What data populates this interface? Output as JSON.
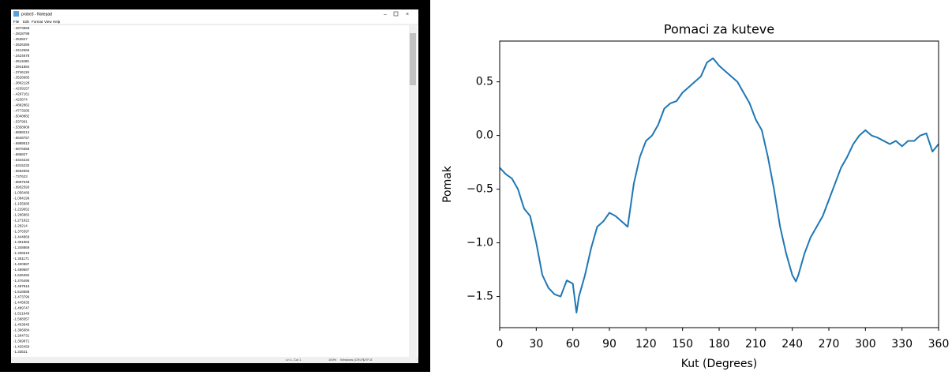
{
  "notepad": {
    "title": "probe3 - Notepad",
    "menu": [
      "File",
      "Edit",
      "Format",
      "View",
      "Help"
    ],
    "lines": [
      "-.2873658",
      "-.2818798",
      "-.353827",
      "-.3526386",
      "-.3412566",
      "-.3424678",
      "-.3511685",
      "-.3941884",
      "-.3746119",
      "-.3528685",
      "-.3862128",
      "-.4239157",
      "-.4297161",
      "-.423674",
      "-.4882862",
      "-.4773285",
      "-.5048882",
      "-.537991",
      "-.5358909",
      "-.5868214",
      "-.6648757",
      "-.6989513",
      "-.6878358",
      "-.686827",
      "-.6344234",
      "-.6315232",
      "-.6682593",
      "-.737623",
      "-.8897648",
      "-.9952593",
      "-1.056486",
      "-1.084199",
      "-1.155685",
      "-1.229652",
      "-1.296882",
      "-1.271822",
      "-1.28214",
      "-1.376397",
      "-1.444869",
      "-1.391865",
      "-1.348869",
      "-1.336519",
      "-1.361171",
      "-1.400887",
      "-1.469687",
      "-1.536392",
      "-1.476496",
      "-1.487816",
      "-1.518588",
      "-1.473796",
      "-1.445835",
      "-1.489747",
      "-1.521649",
      "-1.588357",
      "-1.463645",
      "-1.366084",
      "-1.284731",
      "-1.369871",
      "-1.425459",
      "-1.33531"
    ],
    "status": [
      "Ln 1, Col 1",
      "100%",
      "Windows (CRLF)",
      "UTF-8"
    ]
  },
  "chart_data": {
    "type": "line",
    "title": "Pomaci za kuteve",
    "x_label": "Kut (Degrees)",
    "y_label": "Pomak",
    "color": "#1f77b4",
    "x": [
      0,
      5,
      10,
      15,
      20,
      25,
      30,
      35,
      40,
      45,
      50,
      55,
      60,
      63,
      65,
      70,
      75,
      80,
      85,
      90,
      95,
      100,
      105,
      110,
      115,
      120,
      125,
      130,
      135,
      140,
      145,
      150,
      155,
      160,
      165,
      170,
      175,
      180,
      185,
      190,
      195,
      200,
      205,
      210,
      215,
      220,
      225,
      230,
      235,
      240,
      243,
      245,
      250,
      255,
      260,
      265,
      270,
      275,
      280,
      285,
      290,
      295,
      300,
      305,
      310,
      315,
      320,
      325,
      330,
      335,
      340,
      345,
      350,
      355,
      360
    ],
    "values": [
      -0.3,
      -0.36,
      -0.4,
      -0.5,
      -0.68,
      -0.75,
      -1.0,
      -1.3,
      -1.42,
      -1.48,
      -1.5,
      -1.35,
      -1.38,
      -1.65,
      -1.5,
      -1.3,
      -1.05,
      -0.85,
      -0.8,
      -0.72,
      -0.75,
      -0.8,
      -0.85,
      -0.45,
      -0.2,
      -0.05,
      0.0,
      0.1,
      0.25,
      0.3,
      0.32,
      0.4,
      0.45,
      0.5,
      0.55,
      0.68,
      0.72,
      0.65,
      0.6,
      0.55,
      0.5,
      0.4,
      0.3,
      0.15,
      0.05,
      -0.2,
      -0.5,
      -0.85,
      -1.1,
      -1.3,
      -1.36,
      -1.3,
      -1.1,
      -0.95,
      -0.85,
      -0.75,
      -0.6,
      -0.45,
      -0.3,
      -0.2,
      -0.08,
      0.0,
      0.05,
      0.0,
      -0.02,
      -0.05,
      -0.08,
      -0.05,
      -0.1,
      -0.05,
      -0.05,
      0.0,
      0.02,
      -0.15,
      -0.08
    ],
    "xlim": [
      0,
      360
    ],
    "xticks": [
      0,
      30,
      60,
      90,
      120,
      150,
      180,
      210,
      240,
      270,
      300,
      330,
      360
    ],
    "ylim": [
      -1.79,
      0.88
    ],
    "yticks": [
      {
        "value": -1.5,
        "label": "−1.5"
      },
      {
        "value": -1.0,
        "label": "−1.0"
      },
      {
        "value": -0.5,
        "label": "−0.5"
      },
      {
        "value": 0.0,
        "label": "0.0"
      },
      {
        "value": 0.5,
        "label": "0.5"
      }
    ]
  }
}
